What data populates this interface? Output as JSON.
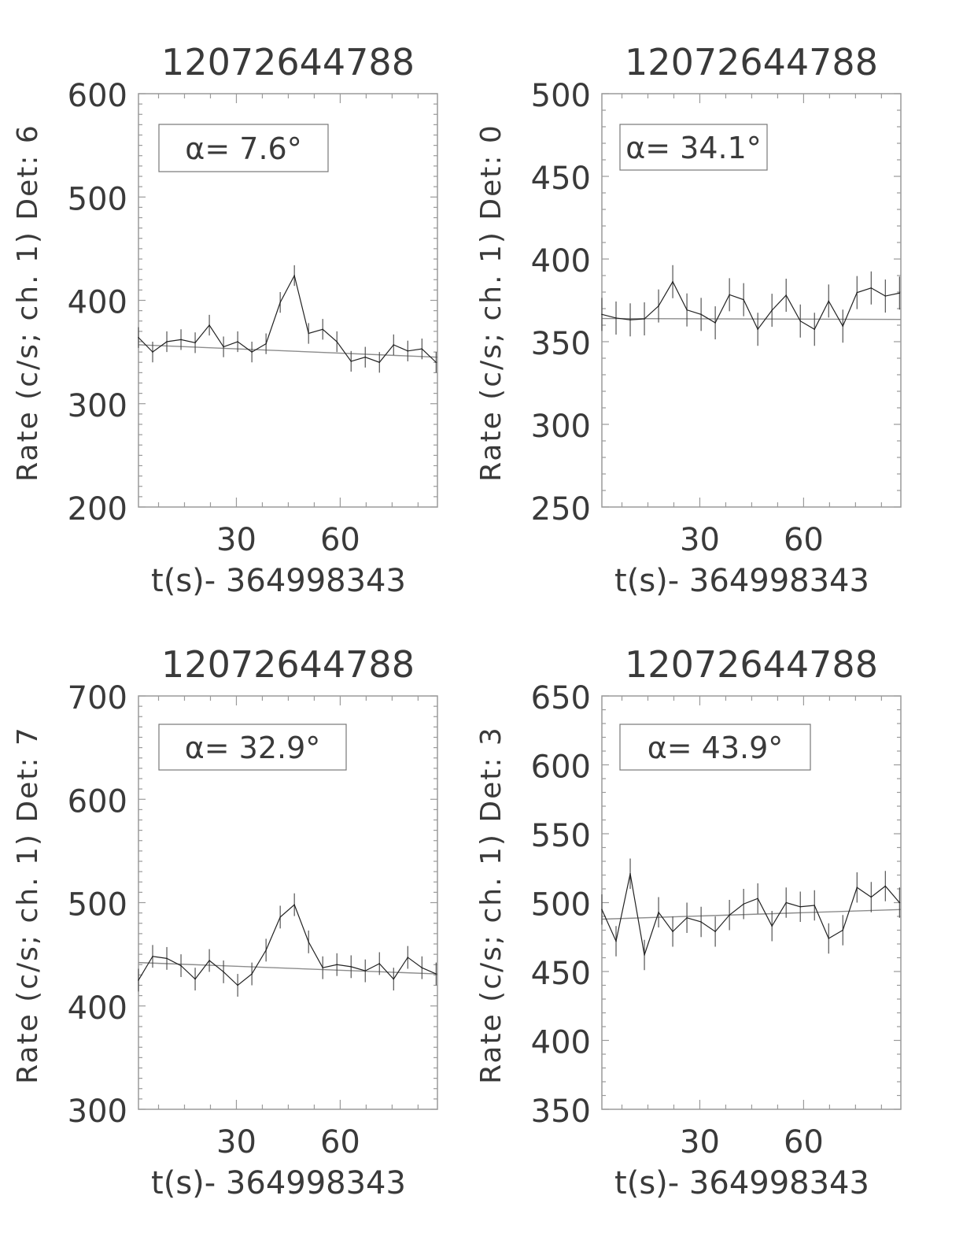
{
  "chart_data": [
    {
      "type": "line",
      "title": "12072644788",
      "xlabel": "t(s)- 364998343",
      "ylabel": "Rate (c/s; ch. 1) Det: 6",
      "annotation": "α= 7.6°",
      "xlim": [
        1.7,
        88.1
      ],
      "ylim": [
        200,
        600
      ],
      "xticks": [
        30,
        60
      ],
      "yticks": [
        200,
        300,
        400,
        500,
        600
      ],
      "grid": false,
      "x_start": 1.7,
      "x_step": 4.096,
      "series": [
        {
          "values": [
            364,
            350,
            360,
            362,
            359,
            376,
            355,
            360,
            350,
            358,
            398,
            424,
            368,
            372,
            360,
            341,
            345,
            340,
            357,
            351,
            353,
            340
          ],
          "error": 10
        }
      ],
      "fit": {
        "x": [
          1.7,
          88.1
        ],
        "y": [
          357,
          345
        ]
      }
    },
    {
      "type": "line",
      "title": "12072644788",
      "xlabel": "t(s)- 364998343",
      "ylabel": "Rate (c/s; ch. 1) Det: 0",
      "annotation": "α= 34.1°",
      "xlim": [
        1.7,
        88.1
      ],
      "ylim": [
        250,
        500
      ],
      "xticks": [
        30,
        60
      ],
      "yticks": [
        250,
        300,
        350,
        400,
        450,
        500
      ],
      "grid": false,
      "x_start": 1.7,
      "x_step": 4.096,
      "series": [
        {
          "values": [
            366.5,
            364.3,
            363.2,
            363.8,
            371.6,
            386.3,
            369.2,
            366.5,
            361.4,
            378.4,
            375.4,
            357.5,
            369,
            378.1,
            362.5,
            357.5,
            374.6,
            359.4,
            379.7,
            382.5,
            377.6,
            379.4
          ],
          "error": 10
        }
      ],
      "fit": {
        "x": [
          1.7,
          88.1
        ],
        "y": [
          364,
          363.5
        ]
      }
    },
    {
      "type": "line",
      "title": "12072644788",
      "xlabel": "t(s)- 364998343",
      "ylabel": "Rate (c/s; ch. 1) Det: 7",
      "annotation": "α= 32.9°",
      "xlim": [
        1.7,
        88.1
      ],
      "ylim": [
        300,
        700
      ],
      "xticks": [
        30,
        60
      ],
      "yticks": [
        300,
        400,
        500,
        600,
        700
      ],
      "grid": false,
      "x_start": 1.7,
      "x_step": 4.096,
      "series": [
        {
          "values": [
            425,
            448,
            446,
            439,
            426,
            444,
            433,
            420,
            431,
            454,
            486,
            498,
            462,
            437,
            440,
            438,
            434,
            441,
            426,
            447,
            437,
            431
          ],
          "error": 11
        }
      ],
      "fit": {
        "x": [
          1.7,
          88.1
        ],
        "y": [
          442,
          431
        ]
      }
    },
    {
      "type": "line",
      "title": "12072644788",
      "xlabel": "t(s)- 364998343",
      "ylabel": "Rate (c/s; ch. 1) Det: 3",
      "annotation": "α= 43.9°",
      "xlim": [
        1.7,
        88.1
      ],
      "ylim": [
        350,
        650
      ],
      "xticks": [
        30,
        60
      ],
      "yticks": [
        350,
        400,
        450,
        500,
        550,
        600,
        650
      ],
      "grid": false,
      "x_start": 1.7,
      "x_step": 4.096,
      "series": [
        {
          "values": [
            495,
            472,
            521,
            462,
            493,
            479,
            489,
            486,
            479,
            491,
            499,
            503,
            483,
            500,
            497,
            498,
            474,
            480,
            511,
            504,
            512,
            500
          ],
          "error": 11
        }
      ],
      "fit": {
        "x": [
          1.7,
          88.1
        ],
        "y": [
          488,
          495
        ]
      }
    }
  ],
  "colors": {
    "data": "#222222",
    "axes": "#9a9a9a",
    "fit": "#8c8c8c",
    "text": "#3a3a3a"
  }
}
